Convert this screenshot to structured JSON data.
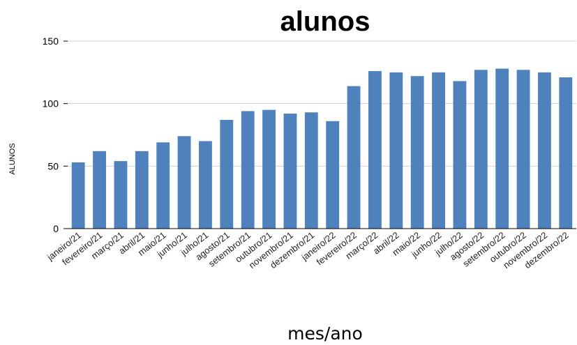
{
  "chart_data": {
    "type": "bar",
    "title": "alunos",
    "xlabel": "mes/ano",
    "ylabel": "ALUNOS",
    "ylim": [
      0,
      150
    ],
    "yticks": [
      0,
      50,
      100,
      150
    ],
    "grid": true,
    "bar_color": "#4f81bd",
    "categories": [
      "janeiro/21",
      "fevereiro/21",
      "março/21",
      "abril/21",
      "maio/21",
      "junho/21",
      "julho/21",
      "agosto/21",
      "setembro/21",
      "outubro/21",
      "novembro/21",
      "dezembro/21",
      "janeiro/22",
      "fevereiro/22",
      "março/22",
      "abril/22",
      "maio/22",
      "junho/22",
      "julho/22",
      "agosto/22",
      "setembro/22",
      "outubro/22",
      "novembro/22",
      "dezembro/22"
    ],
    "values": [
      53,
      62,
      54,
      62,
      69,
      74,
      70,
      87,
      94,
      95,
      92,
      93,
      86,
      114,
      126,
      125,
      122,
      125,
      118,
      127,
      128,
      127,
      125,
      121
    ]
  }
}
